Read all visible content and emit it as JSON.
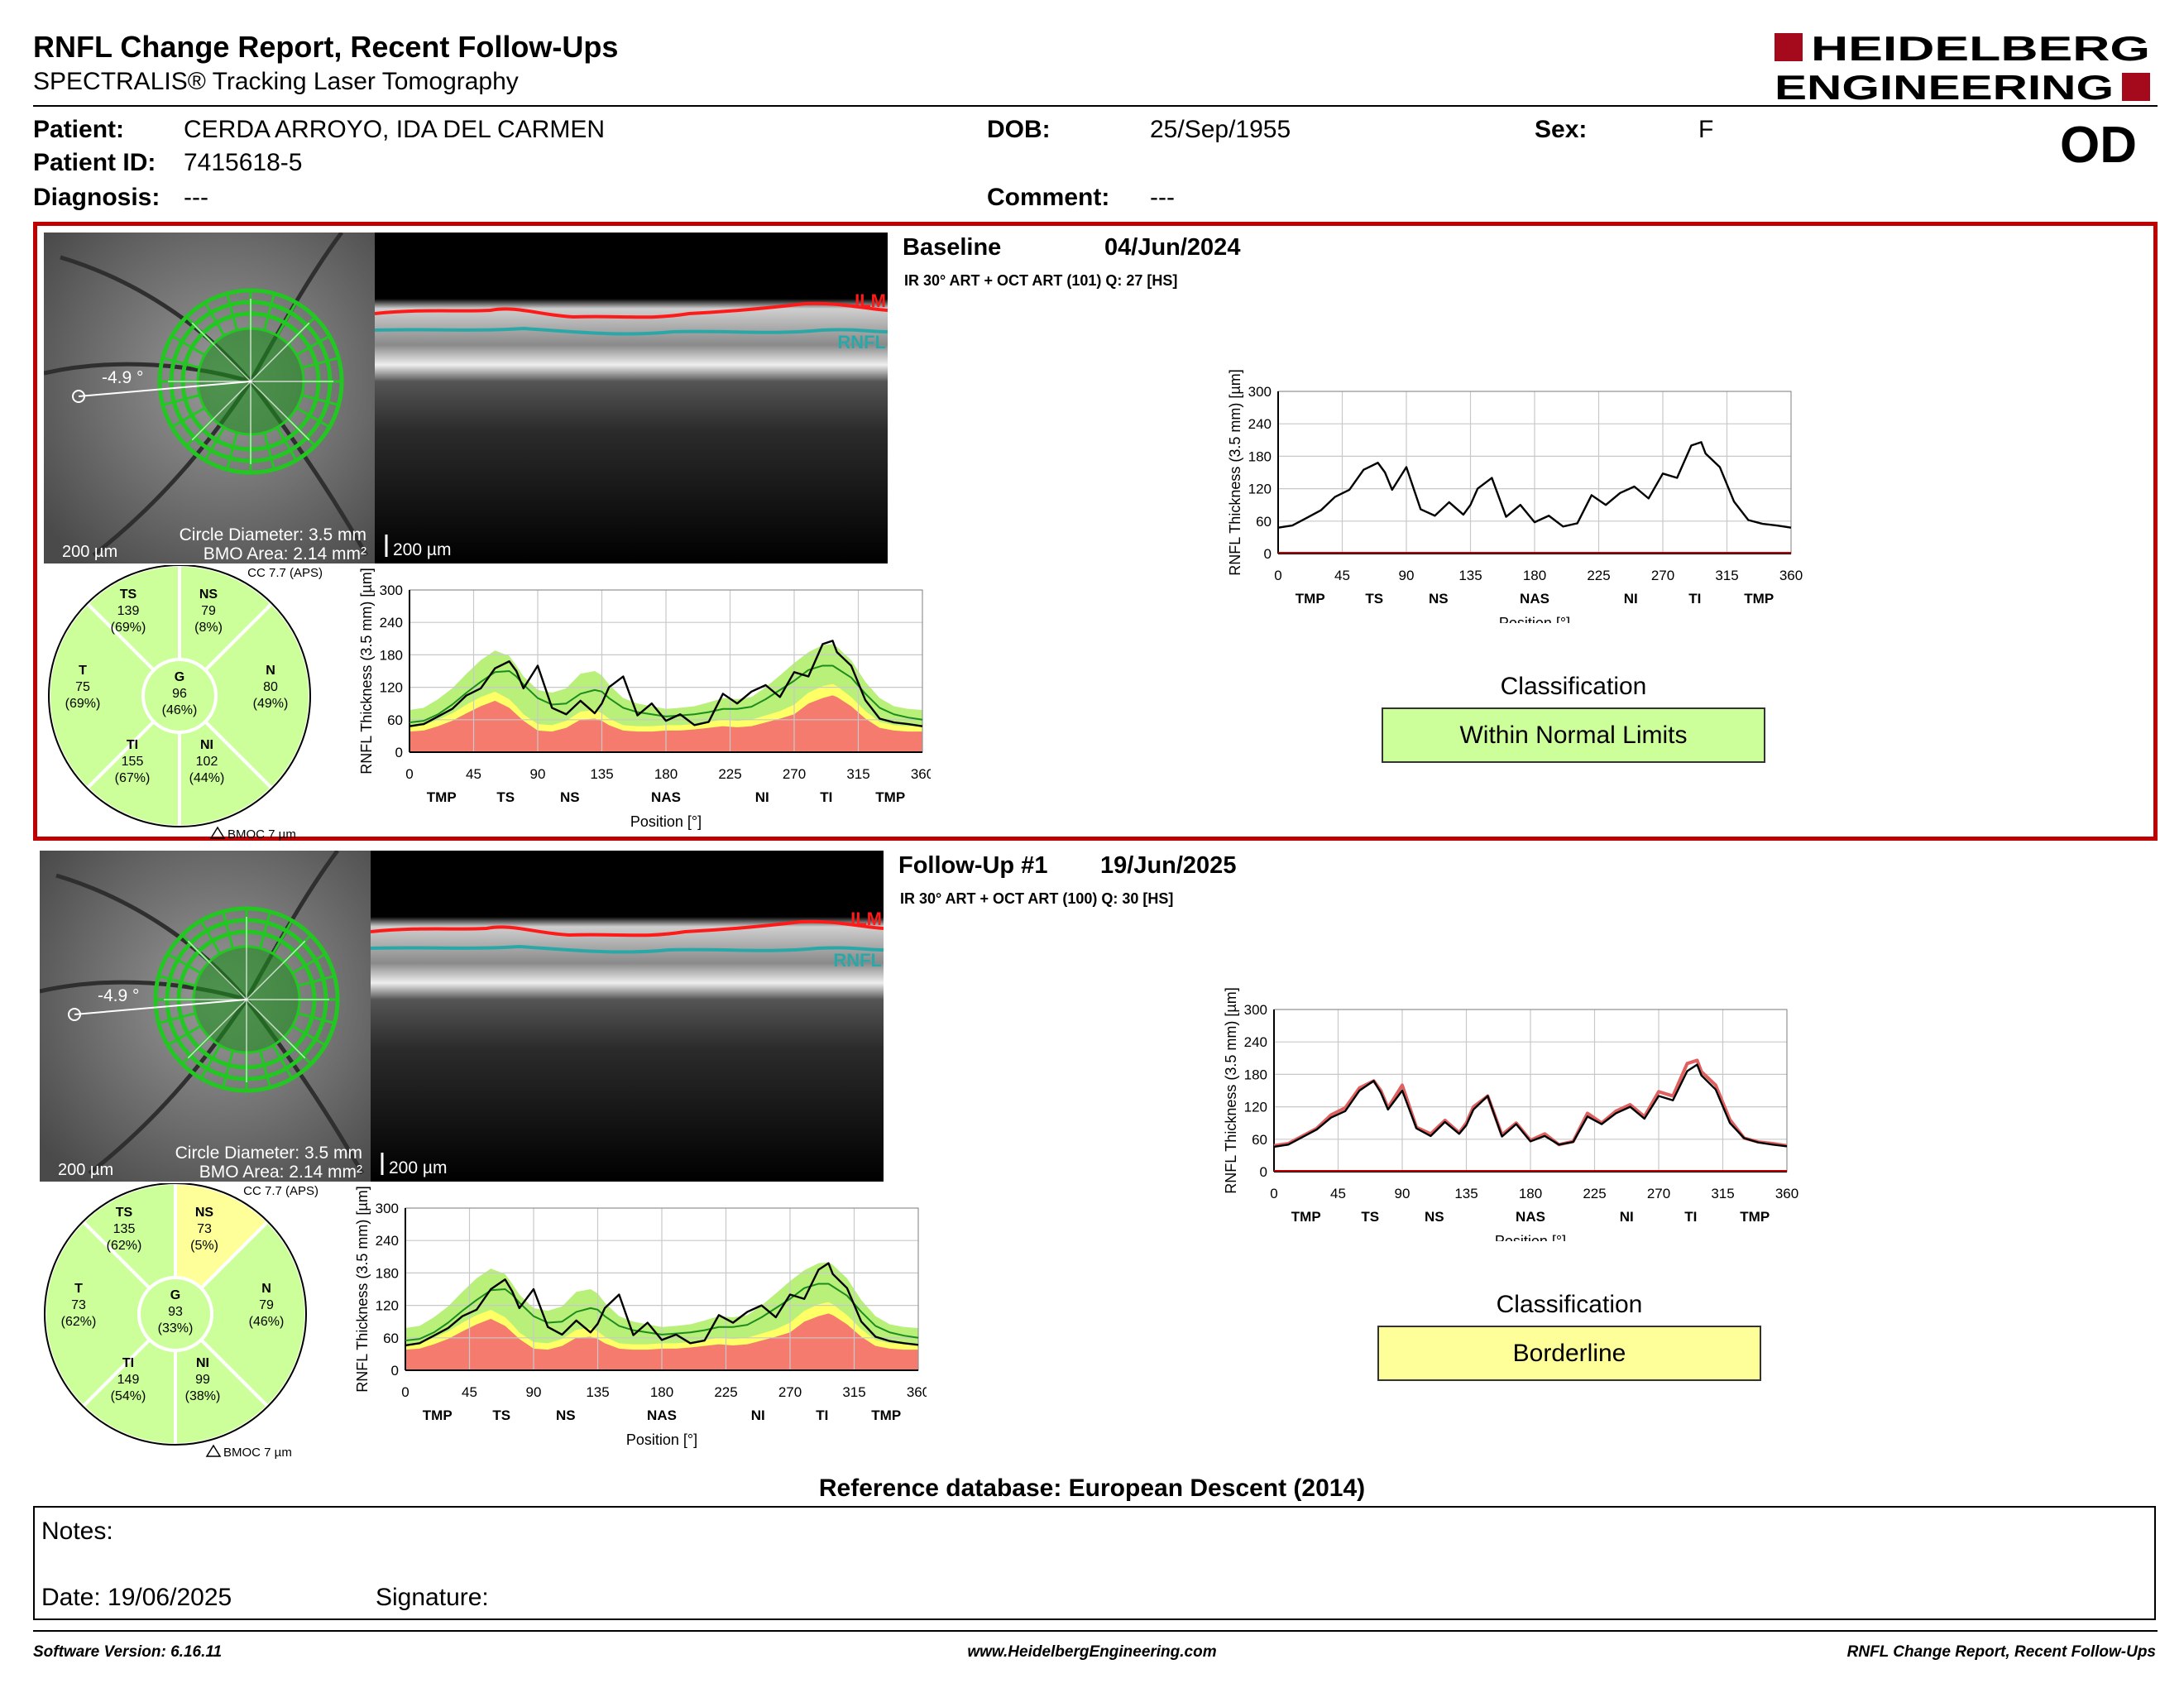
{
  "header": {
    "title": "RNFL Change Report, Recent Follow-Ups",
    "subtitle": "SPECTRALIS® Tracking Laser Tomography",
    "logo_line1": "HEIDELBERG",
    "logo_line2": "ENGINEERING"
  },
  "patient": {
    "patient_label": "Patient:",
    "patient_value": "CERDA ARROYO, IDA DEL CARMEN",
    "id_label": "Patient ID:",
    "id_value": "7415618-5",
    "diagnosis_label": "Diagnosis:",
    "diagnosis_value": "---",
    "dob_label": "DOB:",
    "dob_value": "25/Sep/1955",
    "comment_label": "Comment:",
    "comment_value": "---",
    "sex_label": "Sex:",
    "sex_value": "F",
    "eye": "OD"
  },
  "common": {
    "fundus_scale": "200 µm",
    "bscan_scale": "200 µm",
    "circle_diameter": "Circle Diameter: 3.5 mm",
    "bmo_area": "BMO Area: 2.14 mm²",
    "cc_label": "CC 7.7 (APS)",
    "bmoc": "BMOC 7 µm",
    "ilm": "ILM",
    "rnfl": "RNFL",
    "angle": "-4.9 °",
    "ylabel": "RNFL Thickness (3.5 mm) [µm]",
    "xlabel": "Position [°]",
    "yticks": [
      "0",
      "60",
      "120",
      "180",
      "240",
      "300"
    ],
    "xticks": [
      "0",
      "45",
      "90",
      "135",
      "180",
      "225",
      "270",
      "315",
      "360"
    ],
    "regions": [
      "TMP",
      "TS",
      "NS",
      "NAS",
      "NI",
      "TI",
      "TMP"
    ],
    "class_title": "Classification",
    "ref_db": "Reference database: European Descent (2014)"
  },
  "exams": [
    {
      "name": "Baseline",
      "date": "04/Jun/2024",
      "scan": "IR 30° ART + OCT ART (101) Q: 27 [HS]",
      "classification": "Within Normal Limits",
      "class_color": "#ccff99",
      "sectors": {
        "TS": {
          "v": "139",
          "p": "(69%)",
          "c": "#ccff99"
        },
        "NS": {
          "v": "79",
          "p": "(8%)",
          "c": "#ccff99"
        },
        "T": {
          "v": "75",
          "p": "(69%)",
          "c": "#ccff99"
        },
        "G": {
          "v": "96",
          "p": "(46%)",
          "c": "#ccff99"
        },
        "N": {
          "v": "80",
          "p": "(49%)",
          "c": "#ccff99"
        },
        "TI": {
          "v": "155",
          "p": "(67%)",
          "c": "#ccff99"
        },
        "NI": {
          "v": "102",
          "p": "(44%)",
          "c": "#ccff99"
        }
      }
    },
    {
      "name": "Follow-Up #1",
      "date": "19/Jun/2025",
      "scan": "IR 30° ART + OCT ART (100) Q: 30 [HS]",
      "classification": "Borderline",
      "class_color": "#ffff99",
      "sectors": {
        "TS": {
          "v": "135",
          "p": "(62%)",
          "c": "#ccff99"
        },
        "NS": {
          "v": "73",
          "p": "(5%)",
          "c": "#ffff99"
        },
        "T": {
          "v": "73",
          "p": "(62%)",
          "c": "#ccff99"
        },
        "G": {
          "v": "93",
          "p": "(33%)",
          "c": "#ccff99"
        },
        "N": {
          "v": "79",
          "p": "(46%)",
          "c": "#ccff99"
        },
        "TI": {
          "v": "149",
          "p": "(54%)",
          "c": "#ccff99"
        },
        "NI": {
          "v": "99",
          "p": "(38%)",
          "c": "#ccff99"
        }
      }
    }
  ],
  "chart_data": {
    "type": "line",
    "title": "",
    "xlabel": "Position [°]",
    "ylabel": "RNFL Thickness (3.5 mm) [µm]",
    "xlim": [
      0,
      360
    ],
    "ylim": [
      0,
      300
    ],
    "grid": true,
    "x": [
      0,
      10,
      20,
      30,
      40,
      50,
      60,
      70,
      75,
      80,
      90,
      100,
      110,
      120,
      130,
      135,
      140,
      150,
      160,
      170,
      180,
      190,
      200,
      210,
      220,
      230,
      240,
      250,
      260,
      270,
      280,
      290,
      297,
      300,
      310,
      320,
      330,
      340,
      350,
      360
    ],
    "normal_limits": {
      "red_upper": [
        38,
        40,
        48,
        58,
        72,
        85,
        95,
        82,
        70,
        58,
        40,
        38,
        45,
        60,
        62,
        58,
        50,
        40,
        38,
        38,
        40,
        40,
        42,
        45,
        48,
        46,
        48,
        55,
        62,
        70,
        90,
        100,
        105,
        102,
        85,
        62,
        45,
        40,
        38,
        38
      ],
      "yellow_upper": [
        48,
        50,
        60,
        72,
        88,
        102,
        112,
        98,
        85,
        70,
        52,
        50,
        58,
        75,
        78,
        72,
        62,
        50,
        48,
        48,
        50,
        50,
        52,
        56,
        60,
        58,
        60,
        68,
        76,
        88,
        110,
        122,
        126,
        122,
        102,
        76,
        56,
        50,
        48,
        48
      ],
      "green_upper": [
        78,
        82,
        98,
        118,
        145,
        170,
        188,
        178,
        160,
        140,
        115,
        110,
        118,
        145,
        150,
        142,
        125,
        100,
        90,
        85,
        80,
        82,
        85,
        92,
        100,
        98,
        102,
        120,
        142,
        165,
        185,
        198,
        200,
        195,
        170,
        130,
        100,
        85,
        80,
        78
      ]
    },
    "normal_mean": [
      55,
      58,
      70,
      88,
      110,
      130,
      148,
      150,
      140,
      125,
      100,
      88,
      90,
      108,
      115,
      112,
      100,
      82,
      74,
      70,
      66,
      68,
      70,
      74,
      80,
      80,
      84,
      98,
      115,
      132,
      152,
      160,
      160,
      155,
      138,
      108,
      82,
      70,
      64,
      60
    ],
    "series": [
      {
        "values": [
          48,
          52,
          66,
          80,
          105,
          118,
          155,
          168,
          150,
          118,
          160,
          82,
          70,
          95,
          72,
          90,
          120,
          140,
          68,
          90,
          58,
          70,
          50,
          56,
          108,
          90,
          112,
          124,
          102,
          148,
          140,
          200,
          206,
          185,
          160,
          96,
          62,
          55,
          52,
          48
        ]
      },
      {
        "values": [
          46,
          50,
          64,
          78,
          100,
          112,
          150,
          168,
          146,
          115,
          150,
          80,
          66,
          92,
          70,
          86,
          115,
          140,
          65,
          88,
          56,
          66,
          50,
          55,
          102,
          88,
          108,
          120,
          98,
          140,
          132,
          186,
          198,
          178,
          152,
          90,
          62,
          54,
          50,
          47
        ]
      }
    ]
  },
  "notes": {
    "label": "Notes:",
    "date_label": "Date: 19/06/2025",
    "signature_label": "Signature:"
  },
  "footer": {
    "left": "Software Version: 6.16.11",
    "center": "www.HeidelbergEngineering.com",
    "right": "RNFL Change Report, Recent Follow-Ups"
  }
}
